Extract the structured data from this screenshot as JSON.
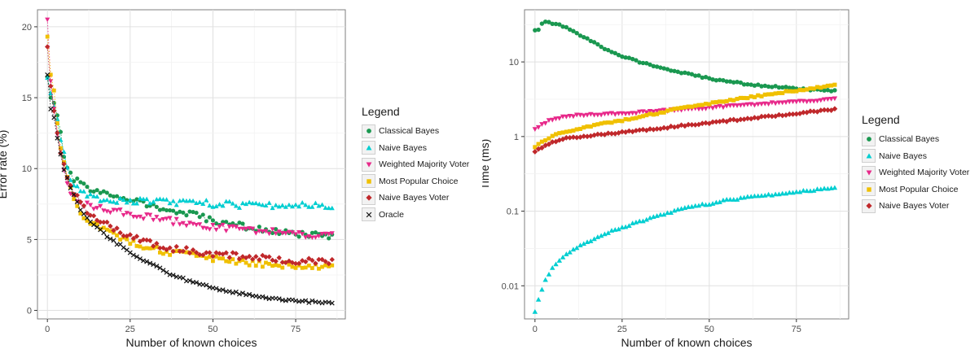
{
  "chart_data": [
    {
      "type": "scatter",
      "xlabel": "Number of known choices",
      "ylabel": "Error rate (%)",
      "xlim": [
        -3,
        90
      ],
      "ylim": [
        -0.6,
        21.2
      ],
      "x_ticks": [
        0,
        25,
        50,
        75
      ],
      "y_ticks": [
        0,
        5,
        10,
        15,
        20
      ],
      "y_scale": "linear",
      "grid": true,
      "legend_title": "Legend",
      "legend_position": "right",
      "x_min": 0,
      "x_max": 86,
      "series": [
        {
          "name": "Classical Bayes",
          "color": "#1a9850",
          "marker": "circle",
          "anchors": [
            [
              0,
              16.5
            ],
            [
              1,
              15.0
            ],
            [
              2,
              14.6
            ],
            [
              3,
              13.6
            ],
            [
              4,
              12.4
            ],
            [
              5,
              11.0
            ],
            [
              6,
              10.0
            ],
            [
              7,
              9.5
            ],
            [
              8,
              9.2
            ],
            [
              10,
              9.0
            ],
            [
              12,
              8.6
            ],
            [
              15,
              8.3
            ],
            [
              20,
              8.1
            ],
            [
              25,
              7.9
            ],
            [
              30,
              7.5
            ],
            [
              35,
              7.1
            ],
            [
              40,
              6.9
            ],
            [
              45,
              6.7
            ],
            [
              50,
              6.3
            ],
            [
              55,
              6.1
            ],
            [
              60,
              5.9
            ],
            [
              65,
              5.7
            ],
            [
              70,
              5.5
            ],
            [
              75,
              5.4
            ],
            [
              80,
              5.3
            ],
            [
              86,
              5.2
            ]
          ]
        },
        {
          "name": "Naive Bayes",
          "color": "#00ced1",
          "marker": "triangle-up",
          "anchors": [
            [
              0,
              16.4
            ],
            [
              1,
              15.3
            ],
            [
              2,
              14.4
            ],
            [
              3,
              13.5
            ],
            [
              4,
              12.2
            ],
            [
              5,
              11.0
            ],
            [
              6,
              10.1
            ],
            [
              7,
              9.3
            ],
            [
              8,
              8.8
            ],
            [
              10,
              8.4
            ],
            [
              12,
              8.0
            ],
            [
              15,
              7.9
            ],
            [
              20,
              7.8
            ],
            [
              25,
              7.7
            ],
            [
              30,
              7.7
            ],
            [
              35,
              7.7
            ],
            [
              40,
              7.6
            ],
            [
              45,
              7.6
            ],
            [
              50,
              7.5
            ],
            [
              55,
              7.5
            ],
            [
              60,
              7.4
            ],
            [
              65,
              7.4
            ],
            [
              70,
              7.4
            ],
            [
              75,
              7.4
            ],
            [
              80,
              7.4
            ],
            [
              86,
              7.4
            ]
          ]
        },
        {
          "name": "Weighted Majority Voter",
          "color": "#e7298a",
          "marker": "triangle-down",
          "anchors": [
            [
              0,
              20.5
            ],
            [
              1,
              16.2
            ],
            [
              2,
              14.2
            ],
            [
              3,
              12.6
            ],
            [
              4,
              11.2
            ],
            [
              5,
              10.0
            ],
            [
              6,
              9.0
            ],
            [
              7,
              8.4
            ],
            [
              8,
              7.9
            ],
            [
              10,
              7.6
            ],
            [
              12,
              7.4
            ],
            [
              15,
              7.2
            ],
            [
              20,
              7.0
            ],
            [
              25,
              6.8
            ],
            [
              30,
              6.6
            ],
            [
              35,
              6.4
            ],
            [
              40,
              6.2
            ],
            [
              45,
              6.0
            ],
            [
              50,
              5.9
            ],
            [
              55,
              5.8
            ],
            [
              60,
              5.7
            ],
            [
              65,
              5.6
            ],
            [
              70,
              5.5
            ],
            [
              75,
              5.4
            ],
            [
              80,
              5.3
            ],
            [
              86,
              5.3
            ]
          ]
        },
        {
          "name": "Most Popular Choice",
          "color": "#f0c000",
          "marker": "square",
          "anchors": [
            [
              0,
              19.3
            ],
            [
              1,
              16.6
            ],
            [
              2,
              15.5
            ],
            [
              3,
              13.3
            ],
            [
              4,
              11.5
            ],
            [
              5,
              10.3
            ],
            [
              6,
              9.2
            ],
            [
              7,
              8.5
            ],
            [
              8,
              7.8
            ],
            [
              10,
              7.0
            ],
            [
              12,
              6.4
            ],
            [
              15,
              6.0
            ],
            [
              20,
              5.3
            ],
            [
              25,
              4.9
            ],
            [
              30,
              4.5
            ],
            [
              35,
              4.2
            ],
            [
              40,
              4.0
            ],
            [
              45,
              3.8
            ],
            [
              50,
              3.6
            ],
            [
              55,
              3.5
            ],
            [
              60,
              3.4
            ],
            [
              65,
              3.3
            ],
            [
              70,
              3.2
            ],
            [
              75,
              3.2
            ],
            [
              80,
              3.1
            ],
            [
              86,
              3.1
            ]
          ]
        },
        {
          "name": "Naive Bayes Voter",
          "color": "#c0282b",
          "marker": "diamond",
          "anchors": [
            [
              0,
              18.6
            ],
            [
              1,
              15.8
            ],
            [
              2,
              14.1
            ],
            [
              3,
              12.5
            ],
            [
              4,
              11.2
            ],
            [
              5,
              10.2
            ],
            [
              6,
              9.5
            ],
            [
              7,
              8.8
            ],
            [
              8,
              8.2
            ],
            [
              10,
              7.6
            ],
            [
              12,
              7.0
            ],
            [
              15,
              6.5
            ],
            [
              20,
              5.8
            ],
            [
              25,
              5.2
            ],
            [
              30,
              4.8
            ],
            [
              35,
              4.5
            ],
            [
              40,
              4.3
            ],
            [
              45,
              4.1
            ],
            [
              50,
              4.0
            ],
            [
              55,
              3.9
            ],
            [
              60,
              3.8
            ],
            [
              65,
              3.7
            ],
            [
              70,
              3.6
            ],
            [
              75,
              3.5
            ],
            [
              80,
              3.5
            ],
            [
              86,
              3.5
            ]
          ]
        },
        {
          "name": "Oracle",
          "color": "#111111",
          "marker": "cross",
          "anchors": [
            [
              0,
              16.6
            ],
            [
              1,
              14.2
            ],
            [
              2,
              13.6
            ],
            [
              3,
              12.1
            ],
            [
              4,
              11.1
            ],
            [
              5,
              10.0
            ],
            [
              6,
              9.3
            ],
            [
              7,
              8.6
            ],
            [
              8,
              8.1
            ],
            [
              10,
              7.1
            ],
            [
              12,
              6.5
            ],
            [
              15,
              5.8
            ],
            [
              20,
              4.9
            ],
            [
              25,
              4.1
            ],
            [
              30,
              3.4
            ],
            [
              35,
              2.8
            ],
            [
              40,
              2.3
            ],
            [
              45,
              1.9
            ],
            [
              50,
              1.6
            ],
            [
              55,
              1.3
            ],
            [
              60,
              1.1
            ],
            [
              65,
              0.95
            ],
            [
              70,
              0.8
            ],
            [
              75,
              0.7
            ],
            [
              80,
              0.6
            ],
            [
              86,
              0.5
            ]
          ]
        }
      ]
    },
    {
      "type": "scatter",
      "xlabel": "Number of known choices",
      "ylabel": "Time (ms)",
      "xlim": [
        -3,
        90
      ],
      "y_scale": "log",
      "ylim": [
        0.0036,
        50
      ],
      "x_ticks": [
        0,
        25,
        50,
        75
      ],
      "y_ticks": [
        0.01,
        0.1,
        1,
        10
      ],
      "y_tick_labels": [
        "0.01",
        "0.1",
        "1",
        "10"
      ],
      "grid": true,
      "legend_title": "Legend",
      "legend_position": "right",
      "x_min": 0,
      "x_max": 86,
      "series": [
        {
          "name": "Classical Bayes",
          "color": "#1a9850",
          "marker": "circle",
          "anchors": [
            [
              0,
              27
            ],
            [
              1,
              27
            ],
            [
              2,
              32
            ],
            [
              3,
              34
            ],
            [
              5,
              33
            ],
            [
              8,
              30
            ],
            [
              12,
              24
            ],
            [
              16,
              19
            ],
            [
              20,
              15
            ],
            [
              25,
              12
            ],
            [
              30,
              10
            ],
            [
              35,
              8.6
            ],
            [
              40,
              7.5
            ],
            [
              45,
              6.7
            ],
            [
              50,
              6.0
            ],
            [
              55,
              5.5
            ],
            [
              60,
              5.1
            ],
            [
              65,
              4.8
            ],
            [
              70,
              4.6
            ],
            [
              75,
              4.4
            ],
            [
              80,
              4.2
            ],
            [
              86,
              4.1
            ]
          ]
        },
        {
          "name": "Naive Bayes",
          "color": "#00ced1",
          "marker": "triangle-up",
          "anchors": [
            [
              0,
              0.0045
            ],
            [
              1,
              0.0065
            ],
            [
              2,
              0.009
            ],
            [
              3,
              0.012
            ],
            [
              5,
              0.017
            ],
            [
              7,
              0.022
            ],
            [
              10,
              0.028
            ],
            [
              15,
              0.038
            ],
            [
              20,
              0.05
            ],
            [
              25,
              0.06
            ],
            [
              30,
              0.072
            ],
            [
              35,
              0.085
            ],
            [
              40,
              0.1
            ],
            [
              45,
              0.115
            ],
            [
              50,
              0.125
            ],
            [
              55,
              0.14
            ],
            [
              60,
              0.15
            ],
            [
              65,
              0.16
            ],
            [
              70,
              0.17
            ],
            [
              75,
              0.18
            ],
            [
              80,
              0.19
            ],
            [
              86,
              0.21
            ]
          ]
        },
        {
          "name": "Weighted Majority Voter",
          "color": "#e7298a",
          "marker": "triangle-down",
          "anchors": [
            [
              0,
              1.25
            ],
            [
              2,
              1.45
            ],
            [
              4,
              1.65
            ],
            [
              7,
              1.8
            ],
            [
              10,
              1.9
            ],
            [
              15,
              1.95
            ],
            [
              20,
              2.0
            ],
            [
              25,
              2.05
            ],
            [
              30,
              2.12
            ],
            [
              35,
              2.2
            ],
            [
              40,
              2.28
            ],
            [
              45,
              2.35
            ],
            [
              50,
              2.45
            ],
            [
              55,
              2.55
            ],
            [
              60,
              2.65
            ],
            [
              65,
              2.75
            ],
            [
              70,
              2.85
            ],
            [
              75,
              2.95
            ],
            [
              80,
              3.05
            ],
            [
              86,
              3.2
            ]
          ]
        },
        {
          "name": "Most Popular Choice",
          "color": "#f0c000",
          "marker": "square",
          "anchors": [
            [
              0,
              0.72
            ],
            [
              2,
              0.85
            ],
            [
              4,
              0.95
            ],
            [
              6,
              1.05
            ],
            [
              10,
              1.2
            ],
            [
              15,
              1.35
            ],
            [
              20,
              1.5
            ],
            [
              25,
              1.65
            ],
            [
              30,
              1.85
            ],
            [
              35,
              2.05
            ],
            [
              40,
              2.3
            ],
            [
              45,
              2.5
            ],
            [
              50,
              2.75
            ],
            [
              55,
              3.0
            ],
            [
              60,
              3.3
            ],
            [
              65,
              3.55
            ],
            [
              70,
              3.85
            ],
            [
              75,
              4.15
            ],
            [
              80,
              4.45
            ],
            [
              86,
              4.9
            ]
          ]
        },
        {
          "name": "Naive Bayes Voter",
          "color": "#c0282b",
          "marker": "diamond",
          "anchors": [
            [
              0,
              0.63
            ],
            [
              2,
              0.72
            ],
            [
              4,
              0.8
            ],
            [
              6,
              0.87
            ],
            [
              8,
              0.92
            ],
            [
              10,
              0.96
            ],
            [
              15,
              1.02
            ],
            [
              20,
              1.08
            ],
            [
              25,
              1.14
            ],
            [
              30,
              1.2
            ],
            [
              35,
              1.28
            ],
            [
              40,
              1.36
            ],
            [
              45,
              1.44
            ],
            [
              50,
              1.53
            ],
            [
              55,
              1.62
            ],
            [
              60,
              1.72
            ],
            [
              65,
              1.82
            ],
            [
              70,
              1.93
            ],
            [
              75,
              2.05
            ],
            [
              80,
              2.17
            ],
            [
              86,
              2.33
            ]
          ]
        }
      ]
    }
  ]
}
